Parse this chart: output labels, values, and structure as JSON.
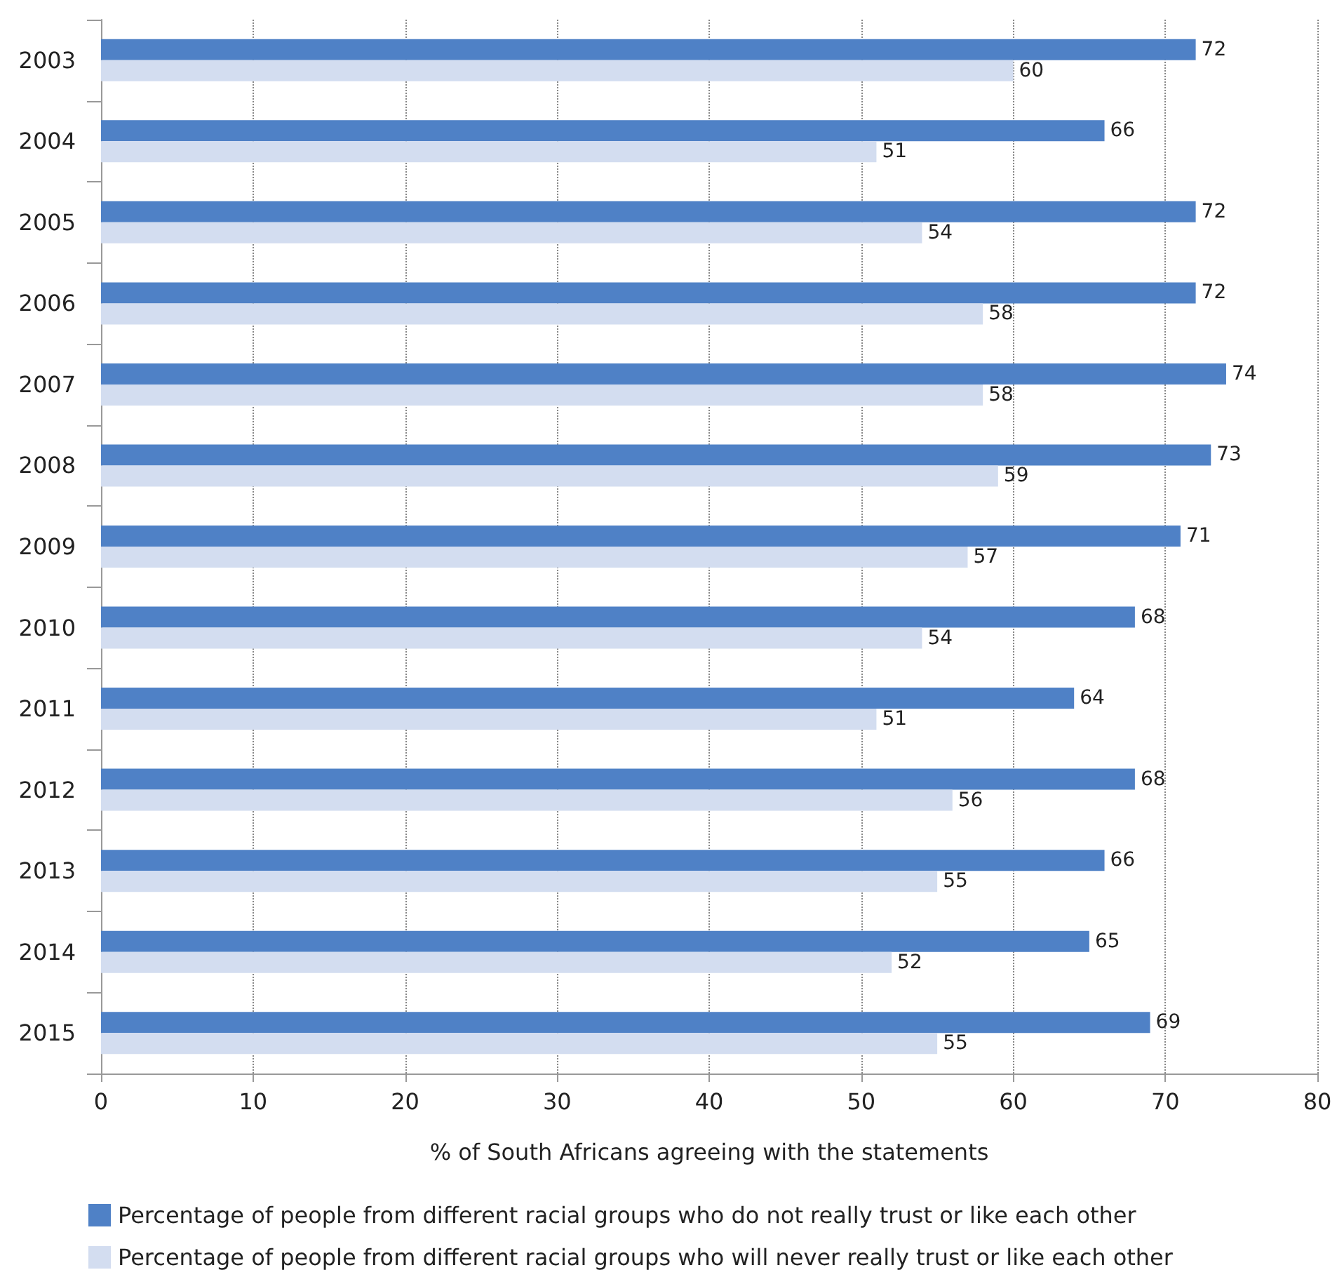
{
  "chart_data": {
    "type": "bar",
    "orientation": "horizontal",
    "xlabel": "% of South Africans agreeing with the statements",
    "categories": [
      "2003",
      "2004",
      "2005",
      "2006",
      "2007",
      "2008",
      "2009",
      "2010",
      "2011",
      "2012",
      "2013",
      "2014",
      "2015"
    ],
    "series": [
      {
        "name": "Percentage of people from different racial groups who do not really trust or like each other",
        "color": "#4f81c6",
        "values": [
          72,
          66,
          72,
          72,
          74,
          73,
          71,
          68,
          64,
          68,
          66,
          65,
          69
        ]
      },
      {
        "name": "Percentage of people from different racial groups who will never really trust or like each other",
        "color": "#d3ddf0",
        "values": [
          60,
          51,
          54,
          58,
          58,
          59,
          57,
          54,
          51,
          56,
          55,
          52,
          55
        ]
      }
    ],
    "xlim": [
      0,
      80
    ],
    "xticks": [
      0,
      10,
      20,
      30,
      40,
      50,
      60,
      70,
      80
    ],
    "grid": "x",
    "legend": "bottom",
    "data_labels": true
  }
}
